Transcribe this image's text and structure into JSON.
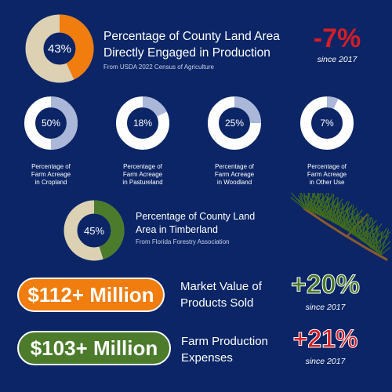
{
  "colors": {
    "background": "#0b2566",
    "orange": "#f07d0d",
    "tan": "#ddd1b4",
    "light_blue": "#aab7d8",
    "track_white": "#ffffff",
    "green": "#4b7b2b",
    "red": "#d31f26",
    "green_change": "#4a7a28"
  },
  "chart_data": [
    {
      "type": "pie",
      "title": "Percentage of County Land Area Directly Engaged in Production",
      "source": "From USDA 2022 Census of Agriculture",
      "value": 43,
      "label": "43%",
      "change": "-7%",
      "change_note": "since 2017"
    },
    {
      "type": "pie",
      "title": "Percentage of Farm Acreage in Cropland",
      "value": 50,
      "label": "50%"
    },
    {
      "type": "pie",
      "title": "Percentage of Farm Acreage in Pastureland",
      "value": 18,
      "label": "18%"
    },
    {
      "type": "pie",
      "title": "Percentage of Farm Acreage in Woodland",
      "value": 25,
      "label": "25%"
    },
    {
      "type": "pie",
      "title": "Percentage of Farm Acreage in Other Use",
      "value": 7,
      "label": "7%"
    },
    {
      "type": "pie",
      "title": "Percentage of County Land Area in Timberland",
      "source": "From Florida Forestry Association",
      "value": 45,
      "label": "45%"
    }
  ],
  "headline": {
    "title_line1": "Percentage of County Land Area",
    "title_line2": "Directly Engaged in Production",
    "source": "From USDA 2022 Census of Agriculture",
    "change": "-7%",
    "since": "since 2017"
  },
  "small_captions": [
    [
      "Percentage of",
      "Farm Acreage",
      "in Cropland"
    ],
    [
      "Percentage of",
      "Farm Acreage",
      "in Pastureland"
    ],
    [
      "Percentage of",
      "Farm Acreage",
      "in Woodland"
    ],
    [
      "Percentage of",
      "Farm Acreage",
      "in Other Use"
    ]
  ],
  "timber": {
    "title_line1": "Percentage of County Land",
    "title_line2": "Area in Timberland",
    "source": "From Florida Forestry Association"
  },
  "market": {
    "pill": "$112+ Million",
    "label_line1": "Market Value of",
    "label_line2": "Products Sold",
    "change": "+20%",
    "since": "since 2017"
  },
  "expenses": {
    "pill": "$103+ Million",
    "label_line1": "Farm Production",
    "label_line2": "Expenses",
    "change": "+21%",
    "since": "since 2017"
  }
}
